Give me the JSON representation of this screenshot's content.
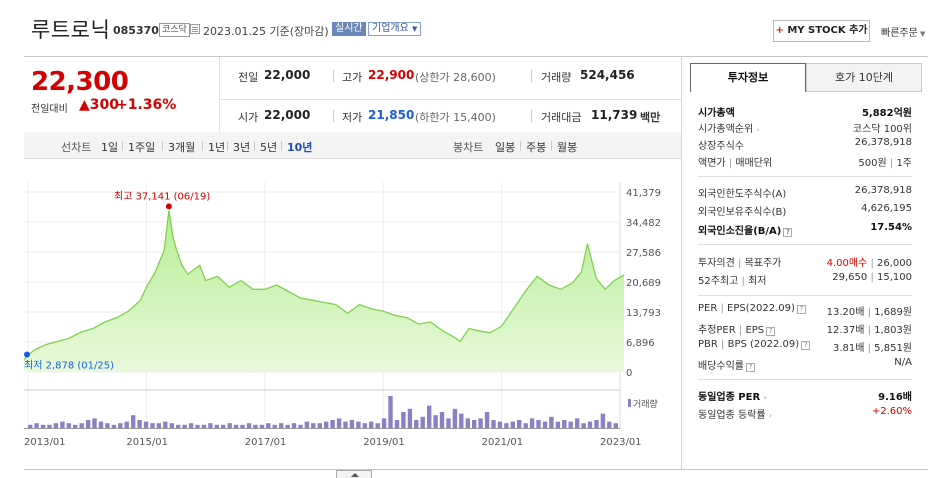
{
  "header": {
    "company_name": "루트로닉",
    "stock_code": "085370",
    "market_badge": "코스닥",
    "date_text": "2023.01.25 기준(장마감)",
    "realtime_badge": "실시간",
    "company_info_badge": "기업개요",
    "mystock_plus": "+",
    "mystock_label": "MY STOCK 추가",
    "quick_order": "빠른주문"
  },
  "price": {
    "current": "22,300",
    "change_label": "전일대비",
    "change_arrow": "▲",
    "change_value": "300",
    "change_pct": "+1.36%",
    "prev_close_label": "전일",
    "prev_close": "22,000",
    "high_label": "고가",
    "high": "22,900",
    "upper_limit": "(상한가 28,600)",
    "volume_label": "거래량",
    "volume": "524,456",
    "open_label": "시가",
    "open": "22,000",
    "low_label": "저가",
    "low": "21,850",
    "lower_limit": "(하한가 15,400)",
    "amount_label": "거래대금",
    "amount": "11,739",
    "amount_unit": "백만"
  },
  "chart_controls": {
    "line_chart_label": "선차트",
    "line_periods": [
      "1일",
      "1주일",
      "3개월",
      "1년",
      "3년",
      "5년",
      "10년"
    ],
    "selected_period": "10년",
    "candle_chart_label": "봉차트",
    "candle_periods": [
      "일봉",
      "주봉",
      "월봉"
    ]
  },
  "chart_data": {
    "type": "area",
    "x_range": [
      "2013/01",
      "2023/01"
    ],
    "x_ticks": [
      "2013/01",
      "2015/01",
      "2017/01",
      "2019/01",
      "2021/01",
      "2023/01"
    ],
    "y_ticks": [
      "41,379",
      "34,482",
      "27,586",
      "20,689",
      "13,793",
      "6,896",
      "0"
    ],
    "ylim": [
      0,
      41379
    ],
    "max_annotation": "최고 37,141 (06/19)",
    "min_annotation": "최저 2,878 (01/25)",
    "volume_label": "거래량",
    "series": [
      {
        "x": [
          2012.9,
          2013.1,
          2013.3,
          2013.5,
          2013.7,
          2013.9,
          2014.1,
          2014.3,
          2014.5,
          2014.7,
          2014.9,
          2015.0,
          2015.15,
          2015.3,
          2015.38,
          2015.45,
          2015.5,
          2015.6,
          2015.7,
          2015.9,
          2016.0,
          2016.2,
          2016.4,
          2016.6,
          2016.8,
          2017.0,
          2017.2,
          2017.4,
          2017.6,
          2017.8,
          2018.0,
          2018.2,
          2018.4,
          2018.6,
          2018.8,
          2019.0,
          2019.2,
          2019.4,
          2019.6,
          2019.8,
          2020.0,
          2020.2,
          2020.3,
          2020.45,
          2020.6,
          2020.8,
          2021.0,
          2021.2,
          2021.4,
          2021.6,
          2021.8,
          2022.0,
          2022.2,
          2022.35,
          2022.45,
          2022.6,
          2022.75,
          2022.9,
          2023.07
        ],
        "values": [
          2878,
          5000,
          6300,
          7000,
          7800,
          9200,
          10000,
          11500,
          12500,
          14000,
          16500,
          19500,
          23000,
          28000,
          37141,
          31000,
          28500,
          24500,
          22500,
          24500,
          21000,
          22000,
          19500,
          21000,
          19000,
          19000,
          20000,
          18500,
          17000,
          16500,
          16000,
          15500,
          13500,
          15500,
          14500,
          14000,
          13000,
          12500,
          11000,
          11500,
          9500,
          8000,
          7000,
          10000,
          9500,
          9000,
          10500,
          14500,
          18500,
          22000,
          20000,
          19000,
          20500,
          23000,
          29500,
          21500,
          19000,
          21000,
          22300
        ]
      }
    ],
    "volume": [
      2,
      3,
      2,
      2,
      3,
      4,
      3,
      2,
      3,
      5,
      6,
      4,
      3,
      2,
      3,
      4,
      8,
      5,
      4,
      3,
      3,
      4,
      3,
      2,
      2,
      3,
      2,
      2,
      3,
      2,
      2,
      3,
      2,
      2,
      3,
      2,
      2,
      3,
      2,
      3,
      2,
      3,
      2,
      4,
      3,
      3,
      4,
      5,
      6,
      4,
      5,
      4,
      3,
      4,
      3,
      6,
      20,
      5,
      10,
      12,
      5,
      7,
      14,
      8,
      10,
      6,
      12,
      9,
      6,
      5,
      6,
      10,
      5,
      4,
      3,
      4,
      5,
      3,
      6,
      5,
      4,
      7,
      4,
      5,
      4,
      6,
      3,
      4,
      5,
      9,
      4,
      3
    ]
  },
  "panel": {
    "tab_invest": "투자정보",
    "tab_quote": "호가 10단계",
    "market_cap_label": "시가총액",
    "market_cap": "5,882억원",
    "market_cap_rank_label": "시가총액순위",
    "market_cap_rank": "코스닥 100위",
    "shares_label": "상장주식수",
    "shares": "26,378,918",
    "par_label": "액면가",
    "trade_unit_label": "매매단위",
    "par_value": "500원",
    "trade_unit": "1주",
    "foreign_limit_label": "외국인한도주식수(A)",
    "foreign_limit": "26,378,918",
    "foreign_hold_label": "외국인보유주식수(B)",
    "foreign_hold": "4,626,195",
    "foreign_ratio_label": "외국인소진율(B/A)",
    "foreign_ratio": "17.54%",
    "opinion_label": "투자의견",
    "target_label": "목표주가",
    "opinion": "4.00매수",
    "target": "26,000",
    "week52_high_label": "52주최고",
    "week52_low_label": "최저",
    "week52_high": "29,650",
    "week52_low": "15,100",
    "per_label": "PER",
    "eps_label": "EPS",
    "per_period": "(2022.09)",
    "per": "13.20배",
    "eps": "1,689원",
    "est_per_label": "추정PER",
    "est_eps_label": "EPS",
    "est_per": "12.37배",
    "est_eps": "1,803원",
    "pbr_label": "PBR",
    "bps_label": "BPS",
    "pbr_period": "(2022.09)",
    "pbr": "3.81배",
    "bps": "5,851원",
    "dividend_label": "배당수익률",
    "dividend": "N/A",
    "sector_per_label": "동일업종 PER",
    "sector_per": "9.16배",
    "sector_change_label": "동일업종 등락률",
    "sector_change": "+2.60%"
  }
}
